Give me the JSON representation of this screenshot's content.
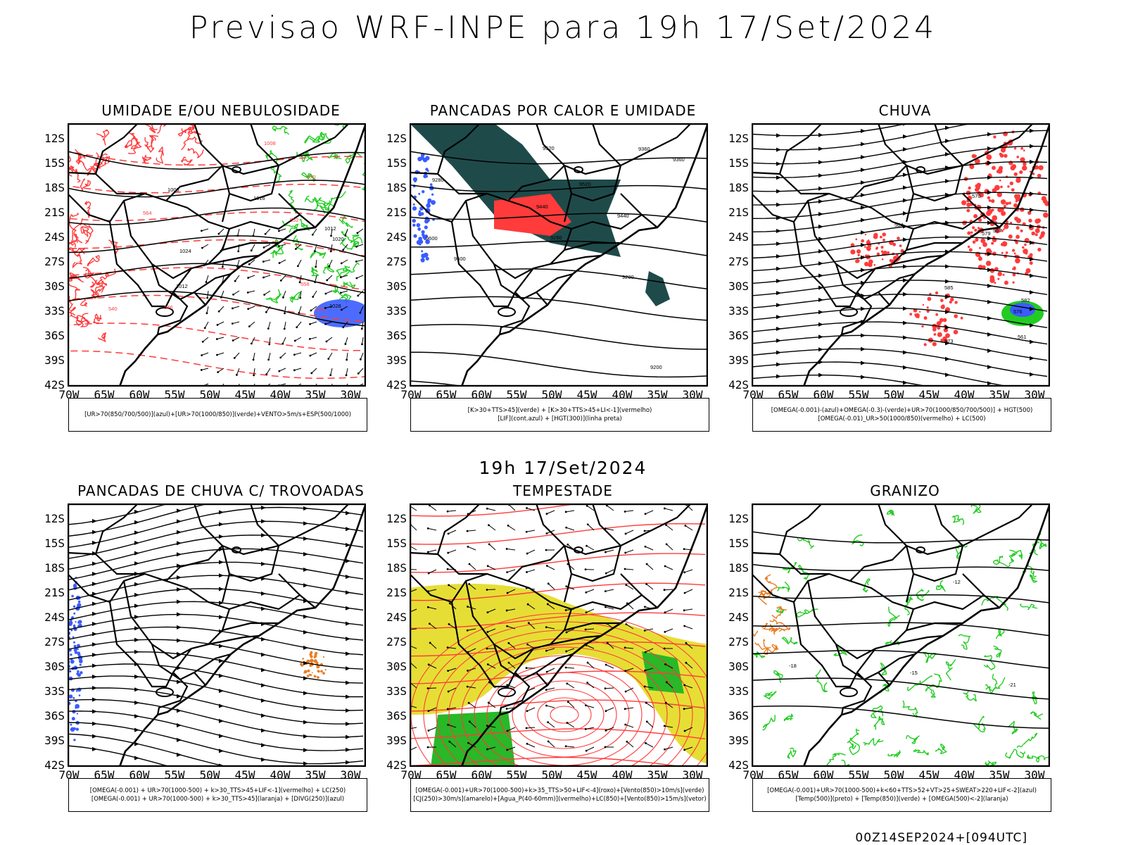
{
  "header": {
    "title": "Previsao WRF-INPE  para 19h 17/Set/2024"
  },
  "middle": {
    "title": "19h 17/Set/2024"
  },
  "footer": {
    "text": "00Z14SEP2024+[094UTC]"
  },
  "axes": {
    "lat_labels": [
      "12S",
      "15S",
      "18S",
      "21S",
      "24S",
      "27S",
      "30S",
      "33S",
      "36S",
      "39S",
      "42S"
    ],
    "lon_labels": [
      "70W",
      "65W",
      "60W",
      "55W",
      "50W",
      "45W",
      "40W",
      "35W",
      "30W"
    ]
  },
  "colors": {
    "green": "#22cc22",
    "red": "#ff3b3b",
    "blue": "#3a5cff",
    "orange": "#e87d23",
    "yellow": "#e6de35",
    "darkteal": "#1f4a4a",
    "black": "#000000"
  },
  "panels": [
    {
      "id": "umidade",
      "title": "UMIDADE E/OU NEBULOSIDADE",
      "legend": [
        "[UR>70(850/700/500)](azul)+[UR>70(1000/850)](verde)+VENTO>5m/s+ESP(500/1000)"
      ],
      "labels": [
        "1008",
        "1012",
        "1016",
        "1020",
        "1024",
        "1028",
        "1012",
        "1008",
        "576",
        "570",
        "564",
        "558",
        "552",
        "546",
        "540"
      ]
    },
    {
      "id": "pancadas-calor",
      "title": "PANCADAS POR CALOR E UMIDADE",
      "legend": [
        "[K>30+TTS>45](verde) + [K>30+TTS>45+LI<-1](vermelho)",
        "[LIF](cont.azul) + [HGT(300)](linha preta)"
      ],
      "labels": [
        "9600",
        "9520",
        "9440",
        "9360",
        "9280",
        "9200",
        "9600",
        "9520",
        "9440",
        "9360",
        "9280",
        "9200"
      ]
    },
    {
      "id": "chuva",
      "title": "CHUVA",
      "legend": [
        "[OMEGA(-0.001)-(azul)+OMEGA(-0.3)-(verde)+UR>70(1000/850/700/500)] + HGT(500)",
        "[OMEGA(-0.01)_UR>50(1000/850)(vermelho) + LC(500)"
      ],
      "labels": [
        "585",
        "582",
        "579",
        "576",
        "573",
        "570",
        "567",
        "564",
        "561"
      ]
    },
    {
      "id": "trovoadas",
      "title": "PANCADAS DE CHUVA C/ TROVOADAS",
      "legend": [
        "[OMEGA(-0.001) + UR>70(1000-500) + k>30_TTS>45+LIF<-1](vermelho) + LC(250)",
        "[OMEGA(-0.001) + UR>70(1000-500) + k>30_TTS>45](laranja) + [DIVG(250)](azul)"
      ],
      "labels": []
    },
    {
      "id": "tempestade",
      "title": "TEMPESTADE",
      "legend": [
        "[OMEGA(-0.001)+UR>70(1000-500)+k>35_TTS>50+LIF<-4](roxo)+[Vento(850)>10m/s](verde)",
        "[CJ(250)>30m/s](amarelo)+[Agua_P(40-60mm)](vermelho)+LC(850)+[Vento(850)>15m/s](vetor)"
      ],
      "labels": []
    },
    {
      "id": "granizo",
      "title": "GRANIZO",
      "legend": [
        "[OMEGA(-0.001)+UR>70(1000-500)+k<60+TTS>52+VT>25+SWEAT>220+LIF<-2](azul)",
        "[Temp(500)](preto) + [Temp(850)](verde) + [OMEGA(500)<-2](laranja)"
      ],
      "labels": [
        "-12",
        "-15",
        "-18",
        "-21"
      ]
    }
  ]
}
